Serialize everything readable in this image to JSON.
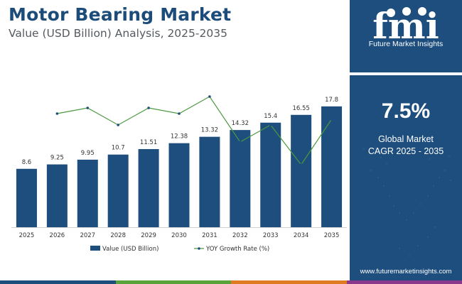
{
  "header": {
    "title": "Motor Bearing Market",
    "subtitle": "Value (USD Billion) Analysis, 2025-2035"
  },
  "sidebar": {
    "logo_letters": "fmi",
    "logo_text": "Future Market Insights",
    "cagr_value": "7.5%",
    "cagr_label_line1": "Global Market",
    "cagr_label_line2": "CAGR 2025 - 2035",
    "website": "www.futuremarketinsights.com"
  },
  "colors": {
    "bar": "#1d4e7d",
    "line": "#4a9a3e",
    "title": "#1c4c7a",
    "sidebar": "#1d4e7d",
    "strip": [
      "#1d4e7d",
      "#5aa33a",
      "#e07b22",
      "#8a3a8c"
    ]
  },
  "chart_data": {
    "type": "bar",
    "categories": [
      "2025",
      "2026",
      "2027",
      "2028",
      "2029",
      "2030",
      "2031",
      "2032",
      "2033",
      "2034",
      "2035"
    ],
    "series": [
      {
        "name": "Value (USD Billion)",
        "type": "bar",
        "values": [
          8.6,
          9.25,
          9.95,
          10.7,
          11.51,
          12.38,
          13.32,
          14.32,
          15.4,
          16.55,
          17.8
        ],
        "labels": [
          "8.6",
          "9.25",
          "9.95",
          "10.7",
          "11.51",
          "12.38",
          "13.32",
          "14.32",
          "15.4",
          "16.55",
          "17.8"
        ]
      },
      {
        "name": "YOY Growth Rate (%)",
        "type": "line",
        "values": [
          null,
          7.56,
          7.57,
          7.54,
          7.57,
          7.56,
          7.59,
          7.51,
          7.54,
          7.47,
          7.55
        ]
      }
    ],
    "legend_position": "bottom",
    "grid": false
  }
}
